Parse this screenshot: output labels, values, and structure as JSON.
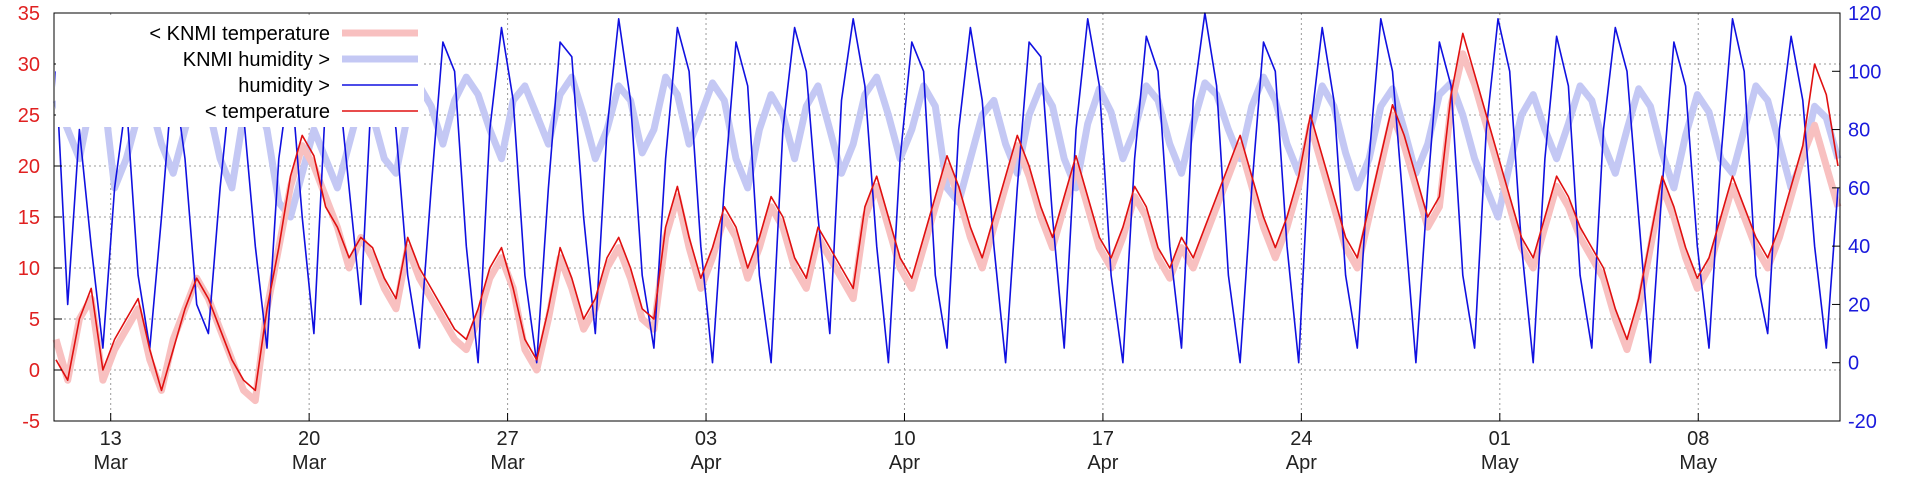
{
  "chart_data": {
    "type": "line",
    "x_range": [
      "2020-03-11",
      "2020-05-13"
    ],
    "y_left_range": [
      -5,
      35
    ],
    "y_right_range": [
      -20,
      120
    ],
    "y_left_ticks": [
      -5,
      0,
      5,
      10,
      15,
      20,
      25,
      30,
      35
    ],
    "y_right_ticks": [
      -20,
      0,
      20,
      40,
      60,
      80,
      100,
      120
    ],
    "x_ticks": [
      {
        "date": "2020-03-13",
        "day": "13",
        "month": "Mar"
      },
      {
        "date": "2020-03-20",
        "day": "20",
        "month": "Mar"
      },
      {
        "date": "2020-03-27",
        "day": "27",
        "month": "Mar"
      },
      {
        "date": "2020-04-03",
        "day": "03",
        "month": "Apr"
      },
      {
        "date": "2020-04-10",
        "day": "10",
        "month": "Apr"
      },
      {
        "date": "2020-04-17",
        "day": "17",
        "month": "Apr"
      },
      {
        "date": "2020-04-24",
        "day": "24",
        "month": "Apr"
      },
      {
        "date": "2020-05-01",
        "day": "01",
        "month": "May"
      },
      {
        "date": "2020-05-08",
        "day": "08",
        "month": "May"
      }
    ],
    "grid": true,
    "legend_position": "top-left",
    "series": [
      {
        "name": "< KNMI temperature",
        "axis": "left",
        "color": "#f8c0c0",
        "style": "thick",
        "values": [
          3,
          -1,
          5,
          7,
          -1,
          2,
          4,
          6,
          1,
          -2,
          3,
          6,
          9,
          7,
          4,
          1,
          -2,
          -3,
          6,
          12,
          18,
          22,
          20,
          17,
          14,
          10,
          13,
          11,
          8,
          6,
          12,
          9,
          7,
          5,
          3,
          2,
          5,
          9,
          11,
          8,
          2,
          0,
          5,
          11,
          8,
          4,
          6,
          10,
          12,
          9,
          5,
          4,
          13,
          17,
          12,
          8,
          11,
          15,
          13,
          9,
          12,
          16,
          14,
          10,
          8,
          13,
          11,
          9,
          7,
          15,
          18,
          14,
          10,
          8,
          12,
          16,
          20,
          17,
          13,
          10,
          14,
          18,
          22,
          19,
          15,
          12,
          16,
          20,
          16,
          12,
          10,
          13,
          17,
          15,
          11,
          9,
          12,
          10,
          13,
          16,
          19,
          22,
          18,
          14,
          11,
          14,
          18,
          24,
          20,
          16,
          12,
          10,
          15,
          20,
          25,
          22,
          18,
          14,
          16,
          26,
          31,
          28,
          24,
          20,
          16,
          12,
          10,
          14,
          18,
          16,
          13,
          11,
          9,
          5,
          2,
          6,
          12,
          18,
          15,
          11,
          8,
          10,
          14,
          18,
          15,
          12,
          10,
          13,
          17,
          21,
          24,
          20,
          16
        ]
      },
      {
        "name": "KNMI humidity >",
        "axis": "right",
        "color": "#c4c8f4",
        "style": "thick",
        "values": [
          90,
          80,
          70,
          90,
          95,
          60,
          70,
          85,
          90,
          75,
          65,
          80,
          95,
          88,
          70,
          60,
          85,
          92,
          80,
          55,
          50,
          65,
          80,
          70,
          60,
          75,
          90,
          85,
          70,
          65,
          85,
          95,
          88,
          75,
          90,
          98,
          92,
          80,
          70,
          90,
          95,
          85,
          75,
          92,
          98,
          85,
          70,
          80,
          95,
          90,
          72,
          80,
          98,
          92,
          75,
          85,
          96,
          90,
          70,
          60,
          80,
          92,
          85,
          70,
          88,
          95,
          80,
          65,
          75,
          92,
          98,
          85,
          70,
          80,
          95,
          88,
          60,
          55,
          70,
          85,
          90,
          75,
          65,
          85,
          95,
          88,
          70,
          60,
          82,
          94,
          86,
          70,
          80,
          95,
          90,
          75,
          65,
          82,
          96,
          92,
          80,
          70,
          88,
          98,
          90,
          75,
          65,
          80,
          95,
          88,
          72,
          60,
          70,
          88,
          94,
          80,
          65,
          75,
          92,
          96,
          85,
          70,
          60,
          50,
          68,
          85,
          92,
          80,
          70,
          82,
          95,
          90,
          75,
          65,
          80,
          94,
          88,
          72,
          60,
          78,
          92,
          86,
          70,
          65,
          80,
          95,
          90,
          75,
          60,
          70,
          88,
          84,
          70
        ]
      },
      {
        "name": "humidity >",
        "axis": "right",
        "color": "#1010e0",
        "style": "thin",
        "values": [
          100,
          20,
          80,
          40,
          5,
          60,
          90,
          30,
          5,
          50,
          100,
          70,
          20,
          10,
          60,
          100,
          85,
          40,
          5,
          70,
          100,
          50,
          10,
          90,
          100,
          60,
          20,
          100,
          110,
          80,
          30,
          5,
          60,
          110,
          100,
          40,
          0,
          80,
          115,
          90,
          30,
          0,
          60,
          110,
          105,
          50,
          10,
          80,
          118,
          90,
          30,
          5,
          70,
          115,
          100,
          40,
          0,
          60,
          110,
          95,
          30,
          0,
          80,
          115,
          100,
          50,
          10,
          90,
          118,
          95,
          40,
          0,
          70,
          110,
          100,
          30,
          5,
          80,
          115,
          90,
          40,
          0,
          60,
          110,
          105,
          50,
          5,
          80,
          118,
          95,
          30,
          0,
          70,
          112,
          100,
          40,
          5,
          90,
          120,
          95,
          30,
          0,
          60,
          110,
          100,
          40,
          0,
          80,
          115,
          90,
          30,
          5,
          70,
          118,
          100,
          50,
          0,
          60,
          110,
          95,
          30,
          5,
          80,
          118,
          100,
          40,
          0,
          70,
          112,
          95,
          30,
          5,
          80,
          115,
          100,
          50,
          0,
          60,
          110,
          95,
          40,
          5,
          70,
          118,
          100,
          30,
          10,
          80,
          112,
          90,
          40,
          5,
          60
        ]
      },
      {
        "name": "< temperature",
        "axis": "left",
        "color": "#e01010",
        "style": "thin",
        "values": [
          1,
          -1,
          5,
          8,
          0,
          3,
          5,
          7,
          2,
          -2,
          2,
          6,
          9,
          7,
          4,
          1,
          -1,
          -2,
          6,
          12,
          19,
          23,
          21,
          16,
          14,
          11,
          13,
          12,
          9,
          7,
          13,
          10,
          8,
          6,
          4,
          3,
          6,
          10,
          12,
          8,
          3,
          1,
          6,
          12,
          9,
          5,
          7,
          11,
          13,
          10,
          6,
          5,
          14,
          18,
          13,
          9,
          12,
          16,
          14,
          10,
          13,
          17,
          15,
          11,
          9,
          14,
          12,
          10,
          8,
          16,
          19,
          15,
          11,
          9,
          13,
          17,
          21,
          18,
          14,
          11,
          15,
          19,
          23,
          20,
          16,
          13,
          17,
          21,
          17,
          13,
          11,
          14,
          18,
          16,
          12,
          10,
          13,
          11,
          14,
          17,
          20,
          23,
          19,
          15,
          12,
          15,
          19,
          25,
          21,
          17,
          13,
          11,
          16,
          21,
          26,
          23,
          19,
          15,
          17,
          27,
          33,
          29,
          25,
          21,
          17,
          13,
          11,
          15,
          19,
          17,
          14,
          12,
          10,
          6,
          3,
          7,
          13,
          19,
          16,
          12,
          9,
          11,
          15,
          19,
          16,
          13,
          11,
          14,
          18,
          22,
          30,
          27,
          20
        ]
      }
    ]
  }
}
